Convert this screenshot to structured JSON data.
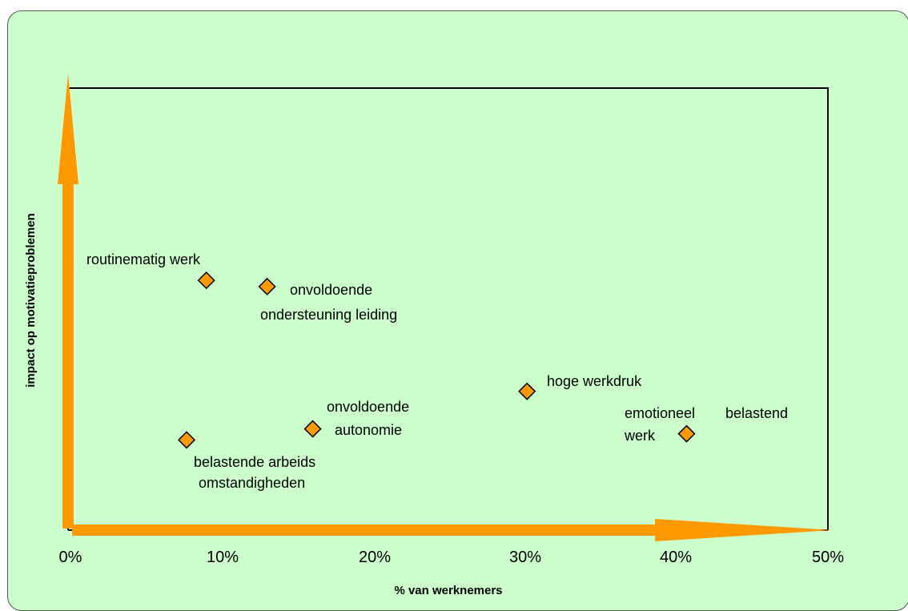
{
  "chart_data": {
    "type": "scatter",
    "title": "",
    "xlabel": "% van werknemers",
    "ylabel": "impact op motivatieproblemen",
    "xlim": [
      0,
      50
    ],
    "ylim": [
      0,
      100
    ],
    "x_ticks": [
      "0%",
      "10%",
      "20%",
      "30%",
      "40%",
      "50%"
    ],
    "grid": false,
    "legend": "none",
    "marker_color": "#ff9900",
    "background_color": "#ccffcc",
    "axis_arrow_color": "#ff9900",
    "points": [
      {
        "x": 9.1,
        "y": 56.5,
        "label_lines": [
          "routinematig werk"
        ]
      },
      {
        "x": 13.1,
        "y": 55.1,
        "label_lines": [
          "onvoldoende",
          "ondersteuning leiding"
        ]
      },
      {
        "x": 30.2,
        "y": 31.4,
        "label_lines": [
          "hoge werkdruk"
        ]
      },
      {
        "x": 40.7,
        "y": 21.8,
        "label_lines": [
          "emotioneel",
          "belastend",
          "werk"
        ]
      },
      {
        "x": 16.1,
        "y": 22.9,
        "label_lines": [
          "onvoldoende",
          "autonomie"
        ]
      },
      {
        "x": 7.8,
        "y": 20.4,
        "label_lines": [
          "belastende arbeids",
          "omstandigheden"
        ]
      }
    ]
  }
}
